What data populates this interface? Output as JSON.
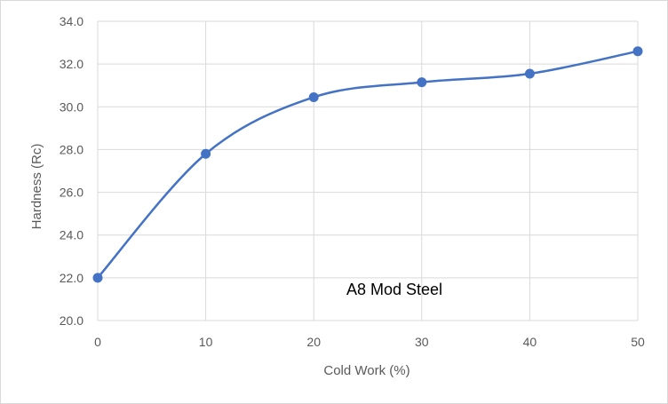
{
  "chart_data": {
    "type": "line",
    "smooth": true,
    "x": [
      0,
      10,
      20,
      30,
      40,
      50
    ],
    "series": [
      {
        "values": [
          22.0,
          27.8,
          30.45,
          31.15,
          31.55,
          32.6
        ]
      }
    ],
    "xlabel": "Cold Work (%)",
    "ylabel": "Hardness (Rc)",
    "xlim": [
      0,
      50
    ],
    "ylim": [
      20,
      34
    ],
    "x_ticks": [
      "0",
      "10",
      "20",
      "30",
      "40",
      "50"
    ],
    "y_ticks": [
      "20.0",
      "22.0",
      "24.0",
      "26.0",
      "28.0",
      "30.0",
      "32.0",
      "34.0"
    ],
    "annotation": "A8 Mod Steel",
    "grid": true,
    "legend": "none",
    "colors": {
      "series": "#4472c4",
      "grid": "#d9d9d9",
      "text": "#595959"
    }
  }
}
